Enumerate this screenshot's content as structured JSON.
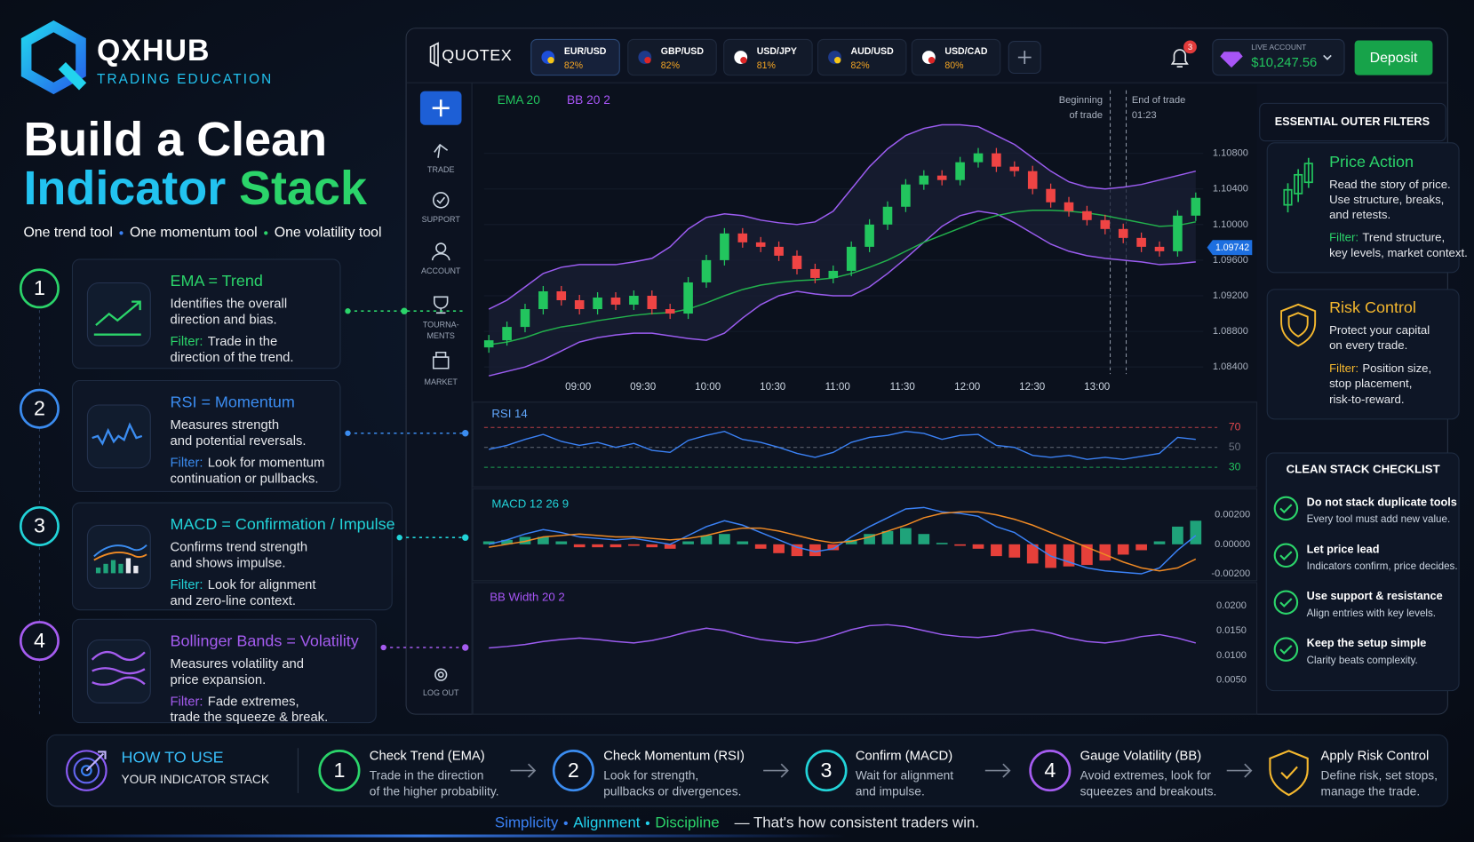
{
  "brand": {
    "name": "QXHUB",
    "tagline": "TRADING EDUCATION"
  },
  "headline": {
    "line1": "Build a Clean",
    "word1": "Indicator",
    "word2": "Stack",
    "tools": [
      "One trend tool",
      "One momentum tool",
      "One volatility tool"
    ]
  },
  "indicators": [
    {
      "number": 1,
      "title": "EMA = Trend",
      "description": [
        "Identifies the overall",
        "direction and bias."
      ],
      "filter_label": "Filter:",
      "filter": [
        "Trade in the",
        "direction of the trend."
      ]
    },
    {
      "number": 2,
      "title": "RSI = Momentum",
      "description": [
        "Measures strength",
        "and potential reversals."
      ],
      "filter_label": "Filter:",
      "filter": [
        "Look for momentum",
        "continuation or pullbacks."
      ]
    },
    {
      "number": 3,
      "title": "MACD = Confirmation / Impulse",
      "description": [
        "Confirms trend strength",
        "and shows impulse."
      ],
      "filter_label": "Filter:",
      "filter": [
        "Look for alignment",
        "and zero-line context."
      ]
    },
    {
      "number": 4,
      "title": "Bollinger Bands = Volatility",
      "description": [
        "Measures volatility and",
        "price expansion."
      ],
      "filter_label": "Filter:",
      "filter": [
        "Fade extremes,",
        "trade the squeeze & break."
      ]
    }
  ],
  "platform": {
    "logo": "QUOTEX",
    "tabs": [
      {
        "pair": "EUR/USD",
        "payout": "82%"
      },
      {
        "pair": "GBP/USD",
        "payout": "82%"
      },
      {
        "pair": "USD/JPY",
        "payout": "81%"
      },
      {
        "pair": "AUD/USD",
        "payout": "82%"
      },
      {
        "pair": "USD/CAD",
        "payout": "80%"
      }
    ],
    "notifications": 3,
    "account_label": "LIVE ACCOUNT",
    "balance": "$10,247.56",
    "deposit": "Deposit",
    "sidebar": [
      [
        "TRADE"
      ],
      [
        "SUPPORT"
      ],
      [
        "ACCOUNT"
      ],
      [
        "TOURNA-",
        "MENTS"
      ],
      [
        "MARKET"
      ]
    ],
    "logout": "LOG OUT",
    "price_chart": {
      "ema_label": "EMA 20",
      "bb_label": "BB 20 2",
      "entry_label": [
        "Beginning",
        "of trade"
      ],
      "exit_label": [
        "End of trade",
        "01:23"
      ],
      "current_price": {
        "value": 1.09742,
        "label": "1.09742"
      },
      "times": [
        "09:00",
        "09:30",
        "10:00",
        "10:30",
        "11:00",
        "11:30",
        "12:00",
        "12:30",
        "13:00"
      ],
      "ylim": [
        1.083,
        1.1115
      ],
      "yticks": [
        {
          "value": 1.108,
          "label": "1.10800"
        },
        {
          "value": 1.104,
          "label": "1.10400"
        },
        {
          "value": 1.1,
          "label": "1.10000"
        },
        {
          "value": 1.096,
          "label": "1.09600"
        },
        {
          "value": 1.092,
          "label": "1.09200"
        },
        {
          "value": 1.088,
          "label": "1.08800"
        },
        {
          "value": 1.084,
          "label": "1.08400"
        }
      ],
      "open": [
        1.0862,
        1.087,
        1.0885,
        1.0905,
        1.0925,
        1.0915,
        1.0905,
        1.0918,
        1.091,
        1.092,
        1.0905,
        1.09,
        1.0935,
        1.096,
        1.099,
        1.098,
        1.0975,
        1.0965,
        1.095,
        1.094,
        1.0948,
        1.0975,
        1.1,
        1.102,
        1.1045,
        1.1055,
        1.105,
        1.107,
        1.108,
        1.1065,
        1.106,
        1.104,
        1.1025,
        1.1015,
        1.1005,
        1.0995,
        1.0985,
        1.0975,
        1.097,
        1.101
      ],
      "high": [
        1.0876,
        1.0891,
        1.0911,
        1.0931,
        1.0931,
        1.0921,
        1.0924,
        1.0924,
        1.0926,
        1.0926,
        1.0911,
        1.0941,
        1.0966,
        1.0996,
        1.0996,
        1.0986,
        1.0981,
        1.0971,
        1.0956,
        1.0954,
        1.0981,
        1.1006,
        1.1026,
        1.1051,
        1.1061,
        1.1061,
        1.1076,
        1.1086,
        1.1086,
        1.1071,
        1.1066,
        1.1046,
        1.1031,
        1.1021,
        1.1011,
        1.1001,
        1.0991,
        1.0981,
        1.1016,
        1.1036
      ],
      "low": [
        1.0856,
        1.0864,
        1.0879,
        1.0899,
        1.0909,
        1.0899,
        1.0899,
        1.0904,
        1.0904,
        1.0899,
        1.0894,
        1.0894,
        1.0929,
        1.0954,
        1.0974,
        1.0969,
        1.0959,
        1.0944,
        1.0934,
        1.0934,
        1.0942,
        1.0969,
        1.0994,
        1.1014,
        1.1039,
        1.1044,
        1.1044,
        1.1064,
        1.1059,
        1.1054,
        1.1034,
        1.1019,
        1.1009,
        1.0999,
        1.0989,
        1.0979,
        1.0969,
        1.0964,
        1.0964,
        1.1004
      ],
      "close": [
        1.087,
        1.0885,
        1.0905,
        1.0925,
        1.0915,
        1.0905,
        1.0918,
        1.091,
        1.092,
        1.0905,
        1.09,
        1.0935,
        1.096,
        1.099,
        1.098,
        1.0975,
        1.0965,
        1.095,
        1.094,
        1.0948,
        1.0975,
        1.1,
        1.102,
        1.1045,
        1.1055,
        1.105,
        1.107,
        1.108,
        1.1065,
        1.106,
        1.104,
        1.1025,
        1.1015,
        1.1005,
        1.0995,
        1.0985,
        1.0975,
        1.097,
        1.101,
        1.103
      ],
      "ema": [
        1.0865,
        1.0868,
        1.0873,
        1.088,
        1.0885,
        1.0888,
        1.0892,
        1.0895,
        1.0898,
        1.09,
        1.0901,
        1.0905,
        1.0912,
        1.092,
        1.0927,
        1.0932,
        1.0935,
        1.0937,
        1.0938,
        1.094,
        1.0945,
        1.0952,
        1.096,
        1.097,
        1.098,
        1.0988,
        1.0996,
        1.1004,
        1.101,
        1.1014,
        1.1016,
        1.1016,
        1.1015,
        1.1013,
        1.101,
        1.1006,
        1.1002,
        1.0998,
        1.0999,
        1.1003
      ],
      "bb_upper": [
        1.0905,
        1.0915,
        1.093,
        1.0945,
        1.0952,
        1.0955,
        1.0955,
        1.0955,
        1.0958,
        1.0962,
        1.0975,
        1.0995,
        1.1008,
        1.1012,
        1.101,
        1.1005,
        1.1002,
        1.1,
        1.1003,
        1.1015,
        1.104,
        1.1065,
        1.1085,
        1.11,
        1.1108,
        1.1112,
        1.1112,
        1.111,
        1.11,
        1.109,
        1.1075,
        1.106,
        1.1048,
        1.1042,
        1.104,
        1.1042,
        1.1045,
        1.105,
        1.1055,
        1.106
      ],
      "bb_lower": [
        1.083,
        1.0835,
        1.084,
        1.0848,
        1.0858,
        1.0868,
        1.0873,
        1.0876,
        1.0878,
        1.0878,
        1.0875,
        1.0872,
        1.087,
        1.0878,
        1.0895,
        1.091,
        1.092,
        1.0925,
        1.0922,
        1.092,
        1.092,
        1.093,
        1.0945,
        1.0962,
        1.098,
        1.0998,
        1.101,
        1.1015,
        1.1012,
        1.1002,
        1.099,
        1.0978,
        1.097,
        1.0965,
        1.0962,
        1.096,
        1.0958,
        1.0955,
        1.0956,
        1.0958
      ]
    },
    "rsi": {
      "label": "RSI 14",
      "ylim": [
        18,
        84
      ],
      "levels": [
        70,
        50,
        30
      ],
      "values": [
        48,
        52,
        58,
        63,
        56,
        52,
        55,
        50,
        54,
        47,
        45,
        57,
        62,
        66,
        58,
        55,
        50,
        44,
        40,
        45,
        55,
        60,
        62,
        66,
        64,
        58,
        62,
        63,
        52,
        50,
        42,
        40,
        42,
        38,
        40,
        38,
        41,
        44,
        60,
        58
      ]
    },
    "macd": {
      "label": "MACD 12 26 9",
      "ylim": [
        -0.0026,
        0.0025
      ],
      "yticks": [
        {
          "value": 0.002,
          "label": "0.00200"
        },
        {
          "value": 0,
          "label": "0.00000"
        },
        {
          "value": -0.002,
          "label": "-0.00200"
        }
      ],
      "macd": [
        0,
        0.0003,
        0.0007,
        0.001,
        0.0008,
        0.0005,
        0.0004,
        0.0003,
        0.0004,
        0.0002,
        0,
        0.0006,
        0.0012,
        0.0016,
        0.0013,
        0.0008,
        0.0003,
        -0.0002,
        -0.0005,
        -0.0003,
        0.0005,
        0.0012,
        0.0018,
        0.0024,
        0.0025,
        0.0022,
        0.0021,
        0.0019,
        0.0012,
        0.0008,
        0,
        -0.0008,
        -0.0012,
        -0.0016,
        -0.0018,
        -0.0019,
        -0.002,
        -0.0016,
        -0.0004,
        0.0006
      ],
      "signal": [
        -0.0002,
        0,
        0.0002,
        0.0005,
        0.0006,
        0.0007,
        0.0006,
        0.0005,
        0.0005,
        0.0004,
        0.0003,
        0.0004,
        0.0006,
        0.0009,
        0.0011,
        0.0011,
        0.0009,
        0.0006,
        0.0003,
        0.0001,
        0.0002,
        0.0005,
        0.0009,
        0.0013,
        0.0018,
        0.0021,
        0.0022,
        0.0022,
        0.002,
        0.0017,
        0.0013,
        0.0008,
        0.0003,
        -0.0002,
        -0.0007,
        -0.0012,
        -0.0016,
        -0.0018,
        -0.0016,
        -0.001
      ],
      "histogram": [
        0.0002,
        0.0003,
        0.0005,
        0.0005,
        0.0002,
        -0.0002,
        -0.0002,
        -0.0002,
        -0.0001,
        -0.0002,
        -0.0003,
        0.0002,
        0.0006,
        0.0007,
        0.0002,
        -0.0003,
        -0.0006,
        -0.0008,
        -0.0008,
        -0.0004,
        0.0003,
        0.0007,
        0.0009,
        0.0011,
        0.0007,
        0.0001,
        -0.0001,
        -0.0003,
        -0.0008,
        -0.0009,
        -0.0013,
        -0.0016,
        -0.0015,
        -0.0014,
        -0.0011,
        -0.0007,
        -0.0004,
        0.0002,
        0.0012,
        0.0016
      ]
    },
    "bb_width": {
      "label": "BB Width 20 2",
      "ylim": [
        0,
        0.0228
      ],
      "yticks": [
        {
          "value": 0.02,
          "label": "0.0200"
        },
        {
          "value": 0.015,
          "label": "0.0150"
        },
        {
          "value": 0.01,
          "label": "0.0100"
        },
        {
          "value": 0.005,
          "label": "0.0050"
        }
      ],
      "values": [
        0.0115,
        0.0118,
        0.0122,
        0.0128,
        0.0132,
        0.0135,
        0.0132,
        0.0128,
        0.0125,
        0.013,
        0.0138,
        0.0148,
        0.0155,
        0.015,
        0.014,
        0.0132,
        0.0128,
        0.0125,
        0.013,
        0.014,
        0.0152,
        0.016,
        0.0162,
        0.0158,
        0.015,
        0.0142,
        0.0138,
        0.0136,
        0.014,
        0.0148,
        0.0152,
        0.0145,
        0.0135,
        0.0128,
        0.0125,
        0.013,
        0.0138,
        0.0142,
        0.0135,
        0.0125
      ]
    }
  },
  "outer_filters": {
    "title": "ESSENTIAL OUTER FILTERS",
    "cards": [
      {
        "title": "Price Action",
        "description": [
          "Read the story of price.",
          "Use structure, breaks,",
          "and retests."
        ],
        "filter_label": "Filter:",
        "filter": [
          "Trend structure,",
          "key levels, market context."
        ]
      },
      {
        "title": "Risk Control",
        "description": [
          "Protect your capital",
          "on every trade."
        ],
        "filter_label": "Filter:",
        "filter": [
          "Position size,",
          "stop placement,",
          "risk-to-reward."
        ]
      }
    ]
  },
  "checklist": {
    "title": "CLEAN STACK CHECKLIST",
    "items": [
      {
        "title": "Do not stack duplicate tools",
        "text": "Every tool must add new value."
      },
      {
        "title": "Let price lead",
        "text": "Indicators confirm, price decides."
      },
      {
        "title": "Use support & resistance",
        "text": "Align entries with key levels."
      },
      {
        "title": "Keep the setup simple",
        "text": "Clarity beats complexity."
      }
    ]
  },
  "how_to": {
    "title": "HOW TO USE",
    "subtitle": "YOUR INDICATOR STACK",
    "steps": [
      {
        "number": 1,
        "title": "Check Trend (EMA)",
        "text": [
          "Trade in the direction",
          "of the higher probability."
        ]
      },
      {
        "number": 2,
        "title": "Check Momentum (RSI)",
        "text": [
          "Look for strength,",
          "pullbacks or divergences."
        ]
      },
      {
        "number": 3,
        "title": "Confirm (MACD)",
        "text": [
          "Wait for alignment",
          "and impulse."
        ]
      },
      {
        "number": 4,
        "title": "Gauge Volatility (BB)",
        "text": [
          "Avoid extremes, look for",
          "squeezes and breakouts."
        ]
      },
      {
        "title": "Apply Risk Control",
        "text": [
          "Define risk, set stops,",
          "manage the trade."
        ]
      }
    ]
  },
  "footer": {
    "words": [
      "Simplicity",
      "Alignment",
      "Discipline"
    ],
    "tagline": "— That's how consistent traders win."
  }
}
